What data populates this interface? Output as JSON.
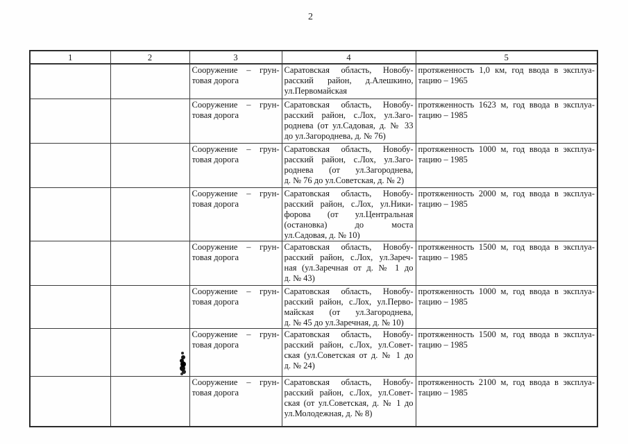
{
  "page": {
    "number": "2"
  },
  "table": {
    "headers": [
      "1",
      "2",
      "3",
      "4",
      "5"
    ],
    "rows": [
      {
        "cells": [
          {
            "lines": []
          },
          {
            "lines": []
          },
          {
            "lines": [
              "Сооружение – грун-",
              "товая дорога"
            ]
          },
          {
            "lines": [
              "Саратовская область, Новобу-",
              "расский район, д.Алешкино,",
              "ул.Первомайская"
            ]
          },
          {
            "lines": [
              "протяженность 1,0 км, год ввода в эксплуа-",
              "тацию – 1965"
            ]
          }
        ]
      },
      {
        "cells": [
          {
            "lines": []
          },
          {
            "lines": []
          },
          {
            "lines": [
              "Сооружение – грун-",
              "товая дорога"
            ]
          },
          {
            "lines": [
              "Саратовская область, Новобу-",
              "расский район, с.Лох, ул.Заго-",
              "роднева (от ул.Садовая, д. № 33",
              "до ул.Загороднева, д. № 76)"
            ]
          },
          {
            "lines": [
              "протяженность 1623 м, год ввода в эксплуа-",
              "тацию – 1985"
            ]
          }
        ]
      },
      {
        "cells": [
          {
            "lines": []
          },
          {
            "lines": []
          },
          {
            "lines": [
              "Сооружение – грун-",
              "товая дорога"
            ]
          },
          {
            "lines": [
              "Саратовская область, Новобу-",
              "расский район, с.Лох, ул.Заго-",
              "роднева (от ул.Загороднева,",
              "д. № 76 до ул.Советская, д. № 2)"
            ]
          },
          {
            "lines": [
              "протяженность 1000 м, год ввода в эксплуа-",
              "тацию – 1985"
            ]
          }
        ]
      },
      {
        "cells": [
          {
            "lines": []
          },
          {
            "lines": []
          },
          {
            "lines": [
              "Сооружение – грун-",
              "товая дорога"
            ]
          },
          {
            "lines": [
              "Саратовская область, Новобу-",
              "расский район, с.Лох, ул.Ники-",
              "форова (от ул.Центральная",
              "(остановка) до моста",
              "ул.Садовая, д. № 10)"
            ]
          },
          {
            "lines": [
              "протяженность 2000 м, год ввода в эксплуа-",
              "тацию – 1985"
            ]
          }
        ]
      },
      {
        "cells": [
          {
            "lines": []
          },
          {
            "lines": []
          },
          {
            "lines": [
              "Сооружение – грун-",
              "товая дорога"
            ]
          },
          {
            "lines": [
              "Саратовская область, Новобу-",
              "расский район, с.Лох, ул.Зареч-",
              "ная (ул.Заречная от д. № 1 до",
              "д. № 43)"
            ]
          },
          {
            "lines": [
              "протяженность 1500 м, год ввода в эксплуа-",
              "тацию – 1985"
            ]
          }
        ]
      },
      {
        "cells": [
          {
            "lines": []
          },
          {
            "lines": []
          },
          {
            "lines": [
              "Сооружение – грун-",
              "товая дорога"
            ]
          },
          {
            "lines": [
              "Саратовская область, Новобу-",
              "расский район, с.Лох, ул.Перво-",
              "майская (от ул.Загороднева,",
              "д. № 45 до ул.Заречная, д. № 10)"
            ]
          },
          {
            "lines": [
              "протяженность 1000 м, год ввода в эксплуа-",
              "тацию – 1985"
            ]
          }
        ]
      },
      {
        "cells": [
          {
            "lines": []
          },
          {
            "lines": []
          },
          {
            "lines": [
              "Сооружение – грун-",
              "товая дорога"
            ]
          },
          {
            "lines": [
              "Саратовская область, Новобу-",
              "расский район, с.Лох, ул.Совет-",
              "ская (ул.Советская от д. № 1 до",
              "д. № 24)"
            ]
          },
          {
            "lines": [
              "протяженность 1500 м, год ввода в эксплуа-",
              "тацию – 1985"
            ]
          }
        ]
      },
      {
        "cells": [
          {
            "lines": []
          },
          {
            "lines": []
          },
          {
            "lines": [
              "Сооружение – грун-",
              "товая дорога"
            ]
          },
          {
            "lines": [
              "Саратовская область, Новобу-",
              "расский район, с.Лох, ул.Совет-",
              "ская (от ул.Советская, д. № 1 до",
              "ул.Молодежная, д. № 8)"
            ]
          },
          {
            "lines": [
              "протяженность 2100 м, год ввода в эксплуа-",
              "тацию – 1985"
            ]
          }
        ]
      }
    ]
  }
}
